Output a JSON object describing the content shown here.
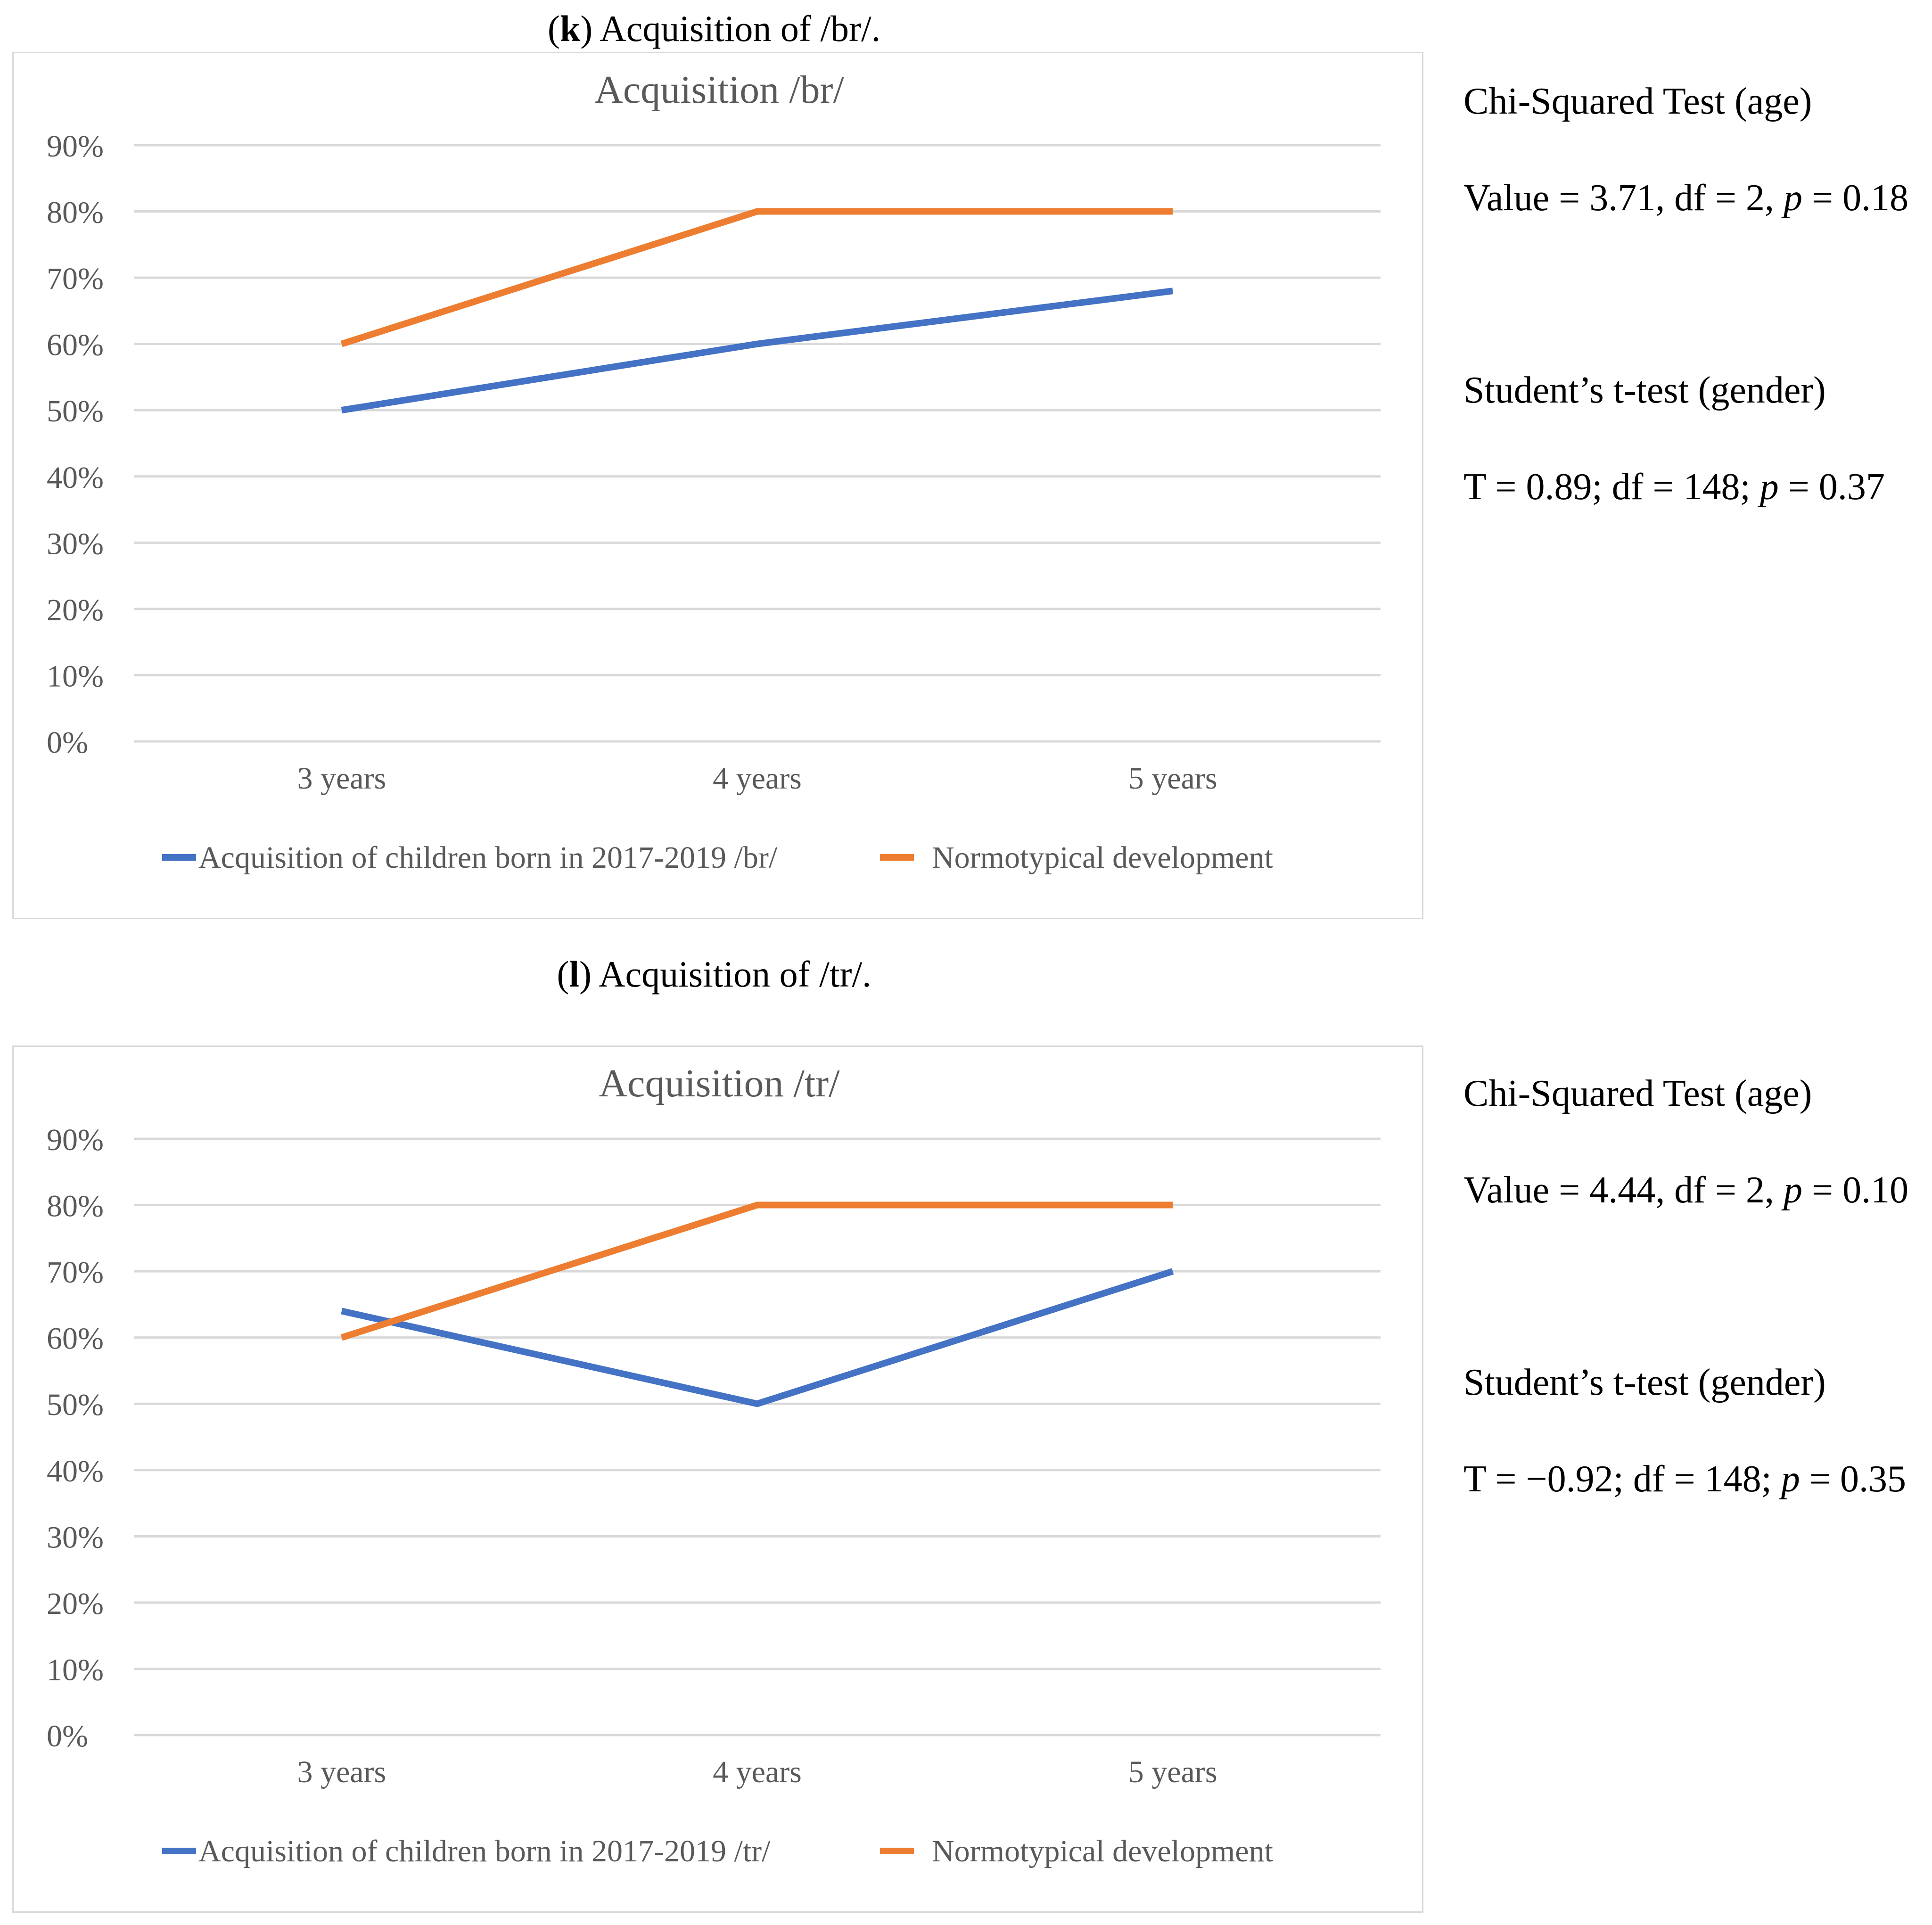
{
  "panels": [
    {
      "caption": {
        "letter": "k",
        "text": "Acquisition of /br/."
      },
      "stats": {
        "chi_title": "Chi-Squared Test (age)",
        "chi_pre": "Value = 3.71, df = 2, ",
        "chi_p_symbol": "p",
        "chi_post": " = 0.18",
        "t_title": "Student’s t-test (gender)",
        "t_pre": "T = 0.89; df = 148; ",
        "t_p_symbol": "p",
        "t_post": " = 0.37"
      }
    },
    {
      "caption": {
        "letter": "l",
        "text": "Acquisition of /tr/."
      },
      "stats": {
        "chi_title": "Chi-Squared Test (age)",
        "chi_pre": "Value = 4.44, df = 2, ",
        "chi_p_symbol": "p",
        "chi_post": " = 0.10",
        "t_title": "Student’s t-test (gender)",
        "t_pre": "T = −0.92; df = 148; ",
        "t_p_symbol": "p",
        "t_post": " = 0.35"
      }
    }
  ],
  "colors": {
    "blue": "#4472c4",
    "orange": "#ed7d31",
    "grid": "#d9d9d9",
    "tick": "#595959",
    "title": "#595959"
  },
  "chart_data": [
    {
      "type": "line",
      "title": "Acquisition /br/",
      "categories": [
        "3 years",
        "4 years",
        "5 years"
      ],
      "y_ticks": [
        "0%",
        "10%",
        "20%",
        "30%",
        "40%",
        "50%",
        "60%",
        "70%",
        "80%",
        "90%"
      ],
      "ylim": [
        0,
        90
      ],
      "grid": true,
      "legend_position": "bottom",
      "series": [
        {
          "name": "Acquisition of children born in 2017-2019  /br/",
          "color": "#4472c4",
          "values": [
            50,
            60,
            68
          ]
        },
        {
          "name": "Normotypical development",
          "color": "#ed7d31",
          "values": [
            60,
            80,
            80
          ]
        }
      ]
    },
    {
      "type": "line",
      "title": "Acquisition /tr/",
      "categories": [
        "3 years",
        "4 years",
        "5 years"
      ],
      "y_ticks": [
        "0%",
        "10%",
        "20%",
        "30%",
        "40%",
        "50%",
        "60%",
        "70%",
        "80%",
        "90%"
      ],
      "ylim": [
        0,
        90
      ],
      "grid": true,
      "legend_position": "bottom",
      "series": [
        {
          "name": "Acquisition of children born in 2017-2019 /tr/",
          "color": "#4472c4",
          "values": [
            64,
            50,
            70
          ]
        },
        {
          "name": "Normotypical development",
          "color": "#ed7d31",
          "values": [
            60,
            80,
            80
          ]
        }
      ]
    }
  ]
}
